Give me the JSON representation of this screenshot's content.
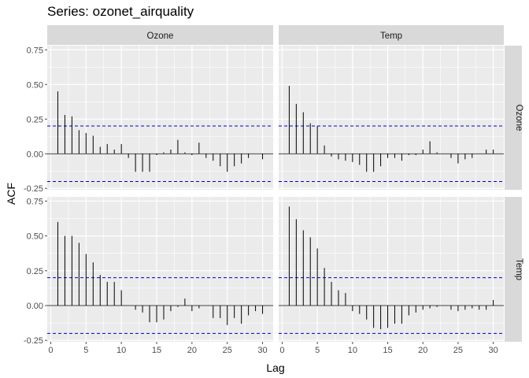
{
  "chart_data": {
    "type": "bar",
    "title": "Series: ozonet_airquality",
    "xlabel": "Lag",
    "ylabel": "ACF",
    "xlim": [
      -0.5,
      31.5
    ],
    "x_ticks": [
      0,
      5,
      10,
      15,
      20,
      25,
      30
    ],
    "y_ticks": [
      -0.25,
      0.0,
      0.25,
      0.5,
      0.75
    ],
    "y_tick_labels": [
      "-0.25",
      "0.00",
      "0.25",
      "0.50",
      "0.75"
    ],
    "ci": 0.2,
    "grid": true,
    "col_strips": [
      "Ozone",
      "Temp"
    ],
    "row_strips": [
      "Ozone",
      "Temp"
    ],
    "row_ylims": [
      [
        -0.26,
        0.78
      ],
      [
        -0.26,
        0.78
      ]
    ],
    "panels": [
      {
        "row": 0,
        "col": 0,
        "x": [
          1,
          2,
          3,
          4,
          5,
          6,
          7,
          8,
          9,
          10,
          11,
          12,
          13,
          14,
          15,
          16,
          17,
          18,
          19,
          20,
          21,
          22,
          23,
          24,
          25,
          26,
          27,
          28,
          29,
          30
        ],
        "values": [
          0.45,
          0.28,
          0.27,
          0.17,
          0.15,
          0.13,
          0.05,
          0.07,
          0.03,
          0.07,
          -0.03,
          -0.13,
          -0.13,
          -0.13,
          -0.01,
          0.01,
          0.03,
          0.1,
          0.01,
          -0.01,
          0.08,
          -0.03,
          -0.05,
          -0.09,
          -0.13,
          -0.09,
          -0.07,
          -0.03,
          0.0,
          -0.04
        ]
      },
      {
        "row": 0,
        "col": 1,
        "x": [
          0,
          1,
          2,
          3,
          4,
          5,
          6,
          7,
          8,
          9,
          10,
          11,
          12,
          13,
          14,
          15,
          16,
          17,
          18,
          19,
          20,
          21,
          22,
          23,
          24,
          25,
          26,
          27,
          28,
          29,
          30
        ],
        "values": [
          0.0,
          0.49,
          0.36,
          0.3,
          0.22,
          0.2,
          0.06,
          -0.02,
          -0.04,
          -0.05,
          -0.06,
          -0.08,
          -0.13,
          -0.13,
          -0.09,
          -0.03,
          -0.03,
          -0.05,
          -0.01,
          -0.01,
          0.03,
          0.09,
          0.01,
          0.0,
          -0.03,
          -0.07,
          -0.04,
          -0.03,
          0.0,
          0.03,
          0.03
        ]
      },
      {
        "row": 1,
        "col": 0,
        "x": [
          0,
          1,
          2,
          3,
          4,
          5,
          6,
          7,
          8,
          9,
          10,
          11,
          12,
          13,
          14,
          15,
          16,
          17,
          18,
          19,
          20,
          21,
          22,
          23,
          24,
          25,
          26,
          27,
          28,
          29,
          30
        ],
        "values": [
          0.0,
          0.6,
          0.5,
          0.5,
          0.45,
          0.37,
          0.31,
          0.22,
          0.17,
          0.17,
          0.11,
          0.0,
          -0.03,
          -0.05,
          -0.12,
          -0.12,
          -0.1,
          -0.04,
          -0.01,
          0.05,
          -0.04,
          -0.02,
          0.0,
          -0.09,
          -0.09,
          -0.14,
          -0.09,
          -0.13,
          -0.07,
          -0.04,
          -0.06
        ]
      },
      {
        "row": 1,
        "col": 1,
        "x": [
          0,
          1,
          2,
          3,
          4,
          5,
          6,
          7,
          8,
          9,
          10,
          11,
          12,
          13,
          14,
          15,
          16,
          17,
          18,
          19,
          20,
          21,
          22,
          23,
          24,
          25,
          26,
          27,
          28,
          29,
          30
        ],
        "values": [
          0.0,
          0.71,
          0.62,
          0.54,
          0.49,
          0.41,
          0.27,
          0.17,
          0.11,
          0.09,
          -0.04,
          -0.06,
          -0.1,
          -0.16,
          -0.17,
          -0.16,
          -0.13,
          -0.13,
          -0.07,
          -0.05,
          -0.03,
          -0.02,
          -0.01,
          0.0,
          -0.03,
          -0.04,
          -0.03,
          -0.02,
          -0.03,
          -0.03,
          0.04
        ]
      }
    ]
  }
}
